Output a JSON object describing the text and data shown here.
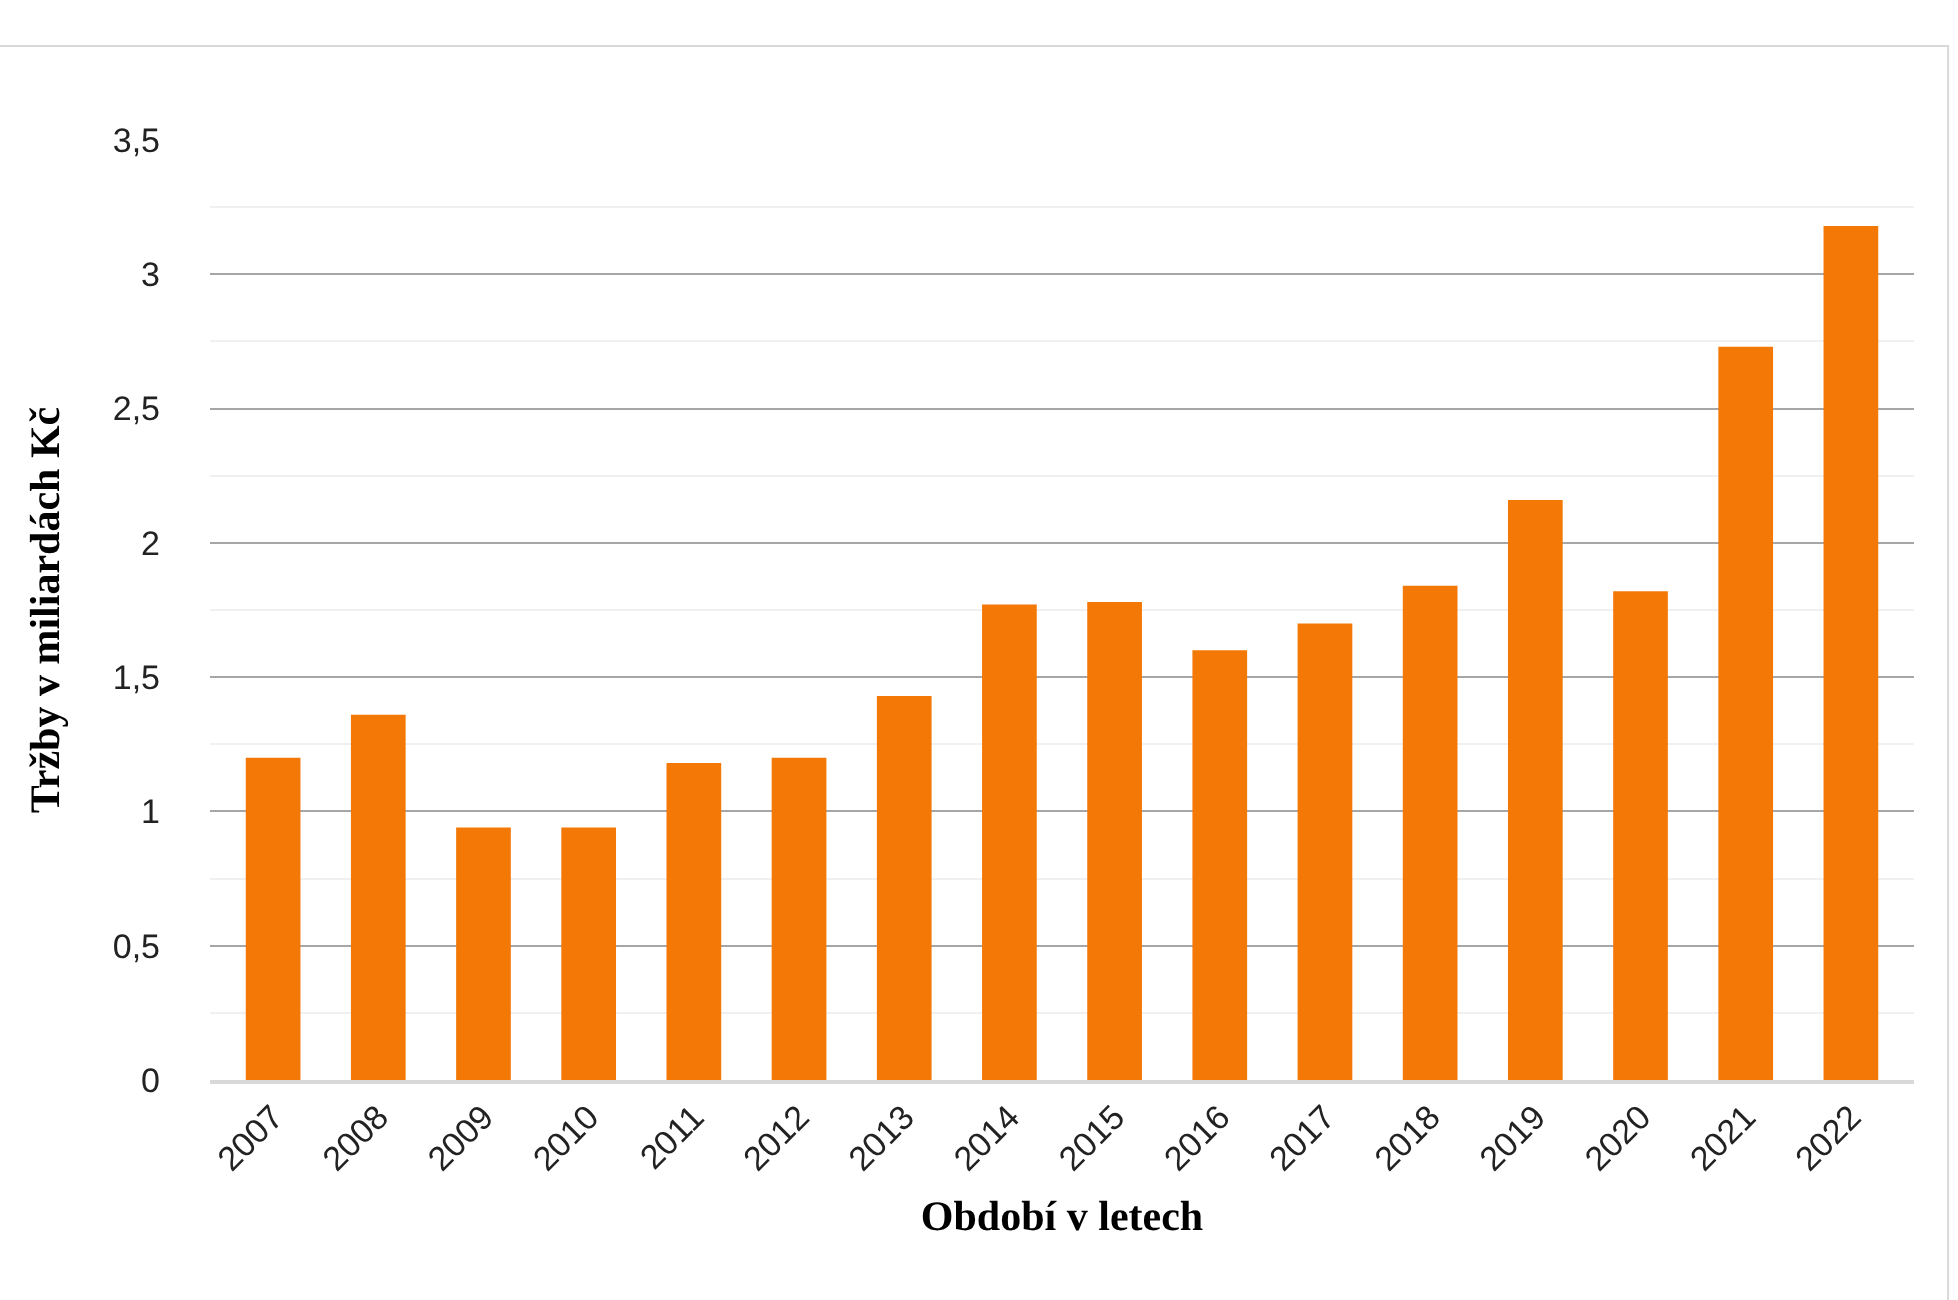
{
  "chart_data": {
    "type": "bar",
    "xlabel": "Období v letech",
    "ylabel": "Tržby v miliardách Kč",
    "categories": [
      "2007",
      "2008",
      "2009",
      "2010",
      "2011",
      "2012",
      "2013",
      "2014",
      "2015",
      "2016",
      "2017",
      "2018",
      "2019",
      "2020",
      "2021",
      "2022"
    ],
    "values": [
      1.2,
      1.36,
      0.94,
      0.94,
      1.18,
      1.2,
      1.43,
      1.77,
      1.78,
      1.6,
      1.7,
      1.84,
      2.16,
      1.82,
      2.73,
      3.18
    ],
    "color": "#f47806",
    "ylim": [
      0,
      3.5
    ],
    "yticks": [
      {
        "value": 0,
        "label": "0"
      },
      {
        "value": 0.25,
        "label": null
      },
      {
        "value": 0.5,
        "label": "0,5"
      },
      {
        "value": 0.75,
        "label": null
      },
      {
        "value": 1,
        "label": "1"
      },
      {
        "value": 1.25,
        "label": null
      },
      {
        "value": 1.5,
        "label": "1,5"
      },
      {
        "value": 1.75,
        "label": null
      },
      {
        "value": 2,
        "label": "2"
      },
      {
        "value": 2.25,
        "label": null
      },
      {
        "value": 2.5,
        "label": "2,5"
      },
      {
        "value": 2.75,
        "label": null
      },
      {
        "value": 3,
        "label": "3"
      },
      {
        "value": 3.25,
        "label": null
      },
      {
        "value": 3.5,
        "label": "3,5"
      }
    ],
    "grid": "y",
    "legend": false
  }
}
